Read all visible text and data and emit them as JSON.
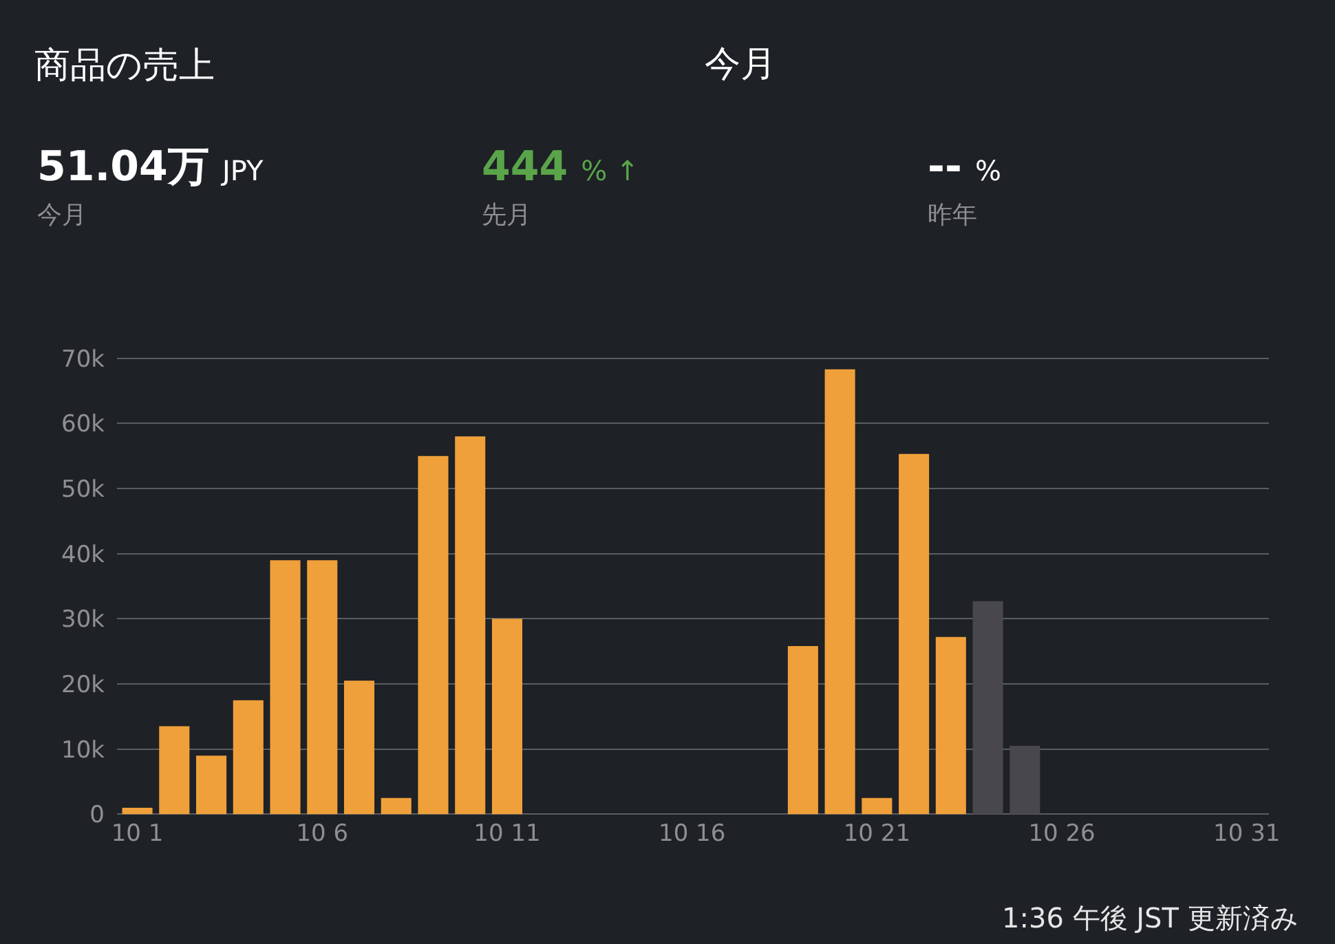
{
  "chart_data": {
    "type": "bar",
    "title": "商品の売上",
    "categories": [
      "10 1",
      null,
      null,
      null,
      null,
      "10 6",
      null,
      null,
      null,
      null,
      "10 11",
      null,
      null,
      null,
      null,
      "10 16",
      null,
      null,
      null,
      null,
      "10 21",
      null,
      null,
      null,
      null,
      "10 26",
      null,
      null,
      null,
      null,
      "10 31"
    ],
    "values": [
      1000,
      13500,
      9000,
      17500,
      39000,
      39000,
      20500,
      2500,
      55000,
      58000,
      30000,
      0,
      0,
      0,
      0,
      0,
      0,
      0,
      25800,
      68300,
      2500,
      55300,
      27200,
      32700,
      10500,
      null,
      null,
      null,
      null,
      null,
      null
    ],
    "colors": [
      "#f0a03a",
      "#f0a03a",
      "#f0a03a",
      "#f0a03a",
      "#f0a03a",
      "#f0a03a",
      "#f0a03a",
      "#f0a03a",
      "#f0a03a",
      "#f0a03a",
      "#f0a03a",
      "#f0a03a",
      "#f0a03a",
      "#f0a03a",
      "#f0a03a",
      "#f0a03a",
      "#f0a03a",
      "#f0a03a",
      "#f0a03a",
      "#f0a03a",
      "#f0a03a",
      "#f0a03a",
      "#f0a03a",
      "#48484c",
      "#48484c",
      "#48484c",
      "#48484c",
      "#48484c",
      "#48484c",
      "#48484c",
      "#48484c"
    ],
    "ylim": [
      0,
      70000
    ],
    "yticks": [
      0,
      {
        "value": 10000,
        "label": "10k"
      },
      {
        "value": 20000,
        "label": "20k"
      },
      {
        "value": 30000,
        "label": "30k"
      },
      {
        "value": 40000,
        "label": "40k"
      },
      {
        "value": 50000,
        "label": "50k"
      },
      {
        "value": 60000,
        "label": "60k"
      },
      {
        "value": 70000,
        "label": "70k"
      }
    ],
    "grid": "y",
    "annotations": [
      "今月",
      "51.04万 JPY",
      "今月",
      "444 % ↑",
      "先月",
      "-- %",
      "昨年",
      "1:36 午後 JST 更新済み"
    ]
  }
}
